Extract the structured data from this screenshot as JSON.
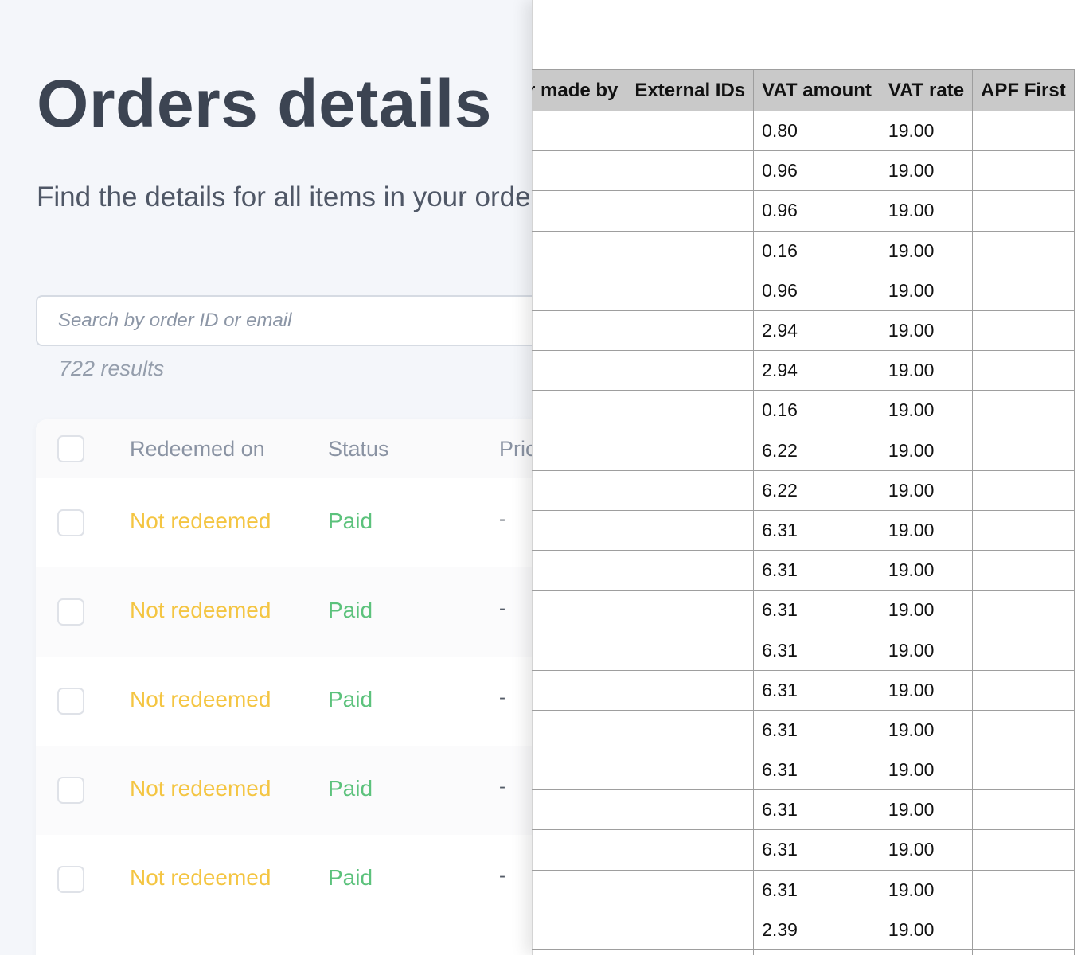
{
  "app": {
    "title": "Orders details",
    "subtitle": "Find the details for all items in your order",
    "search": {
      "placeholder": "Search by order ID or email",
      "value": ""
    },
    "result_count": "722 results",
    "orders_table": {
      "columns": [
        "Redeemed on",
        "Status",
        "Price"
      ],
      "rows": [
        {
          "redeemed": "Not redeemed",
          "status": "Paid",
          "price": "-"
        },
        {
          "redeemed": "Not redeemed",
          "status": "Paid",
          "price": "-"
        },
        {
          "redeemed": "Not redeemed",
          "status": "Paid",
          "price": "-"
        },
        {
          "redeemed": "Not redeemed",
          "status": "Paid",
          "price": "-"
        },
        {
          "redeemed": "Not redeemed",
          "status": "Paid",
          "price": "-"
        }
      ]
    },
    "colors": {
      "not_redeemed": "#f4c542",
      "paid": "#5cc27c",
      "title": "#3c4452"
    }
  },
  "sheet": {
    "columns": [
      "Order made by",
      "External IDs",
      "VAT amount",
      "VAT rate",
      "APF First"
    ],
    "rows": [
      [
        "",
        "",
        "0.80",
        "19.00",
        ""
      ],
      [
        "",
        "",
        "0.96",
        "19.00",
        ""
      ],
      [
        "",
        "",
        "0.96",
        "19.00",
        ""
      ],
      [
        "",
        "",
        "0.16",
        "19.00",
        ""
      ],
      [
        "",
        "",
        "0.96",
        "19.00",
        ""
      ],
      [
        "",
        "",
        "2.94",
        "19.00",
        ""
      ],
      [
        "",
        "",
        "2.94",
        "19.00",
        ""
      ],
      [
        "",
        "",
        "0.16",
        "19.00",
        ""
      ],
      [
        "",
        "",
        "6.22",
        "19.00",
        ""
      ],
      [
        "",
        "",
        "6.22",
        "19.00",
        ""
      ],
      [
        "",
        "",
        "6.31",
        "19.00",
        ""
      ],
      [
        "",
        "",
        "6.31",
        "19.00",
        ""
      ],
      [
        "",
        "",
        "6.31",
        "19.00",
        ""
      ],
      [
        "",
        "",
        "6.31",
        "19.00",
        ""
      ],
      [
        "",
        "",
        "6.31",
        "19.00",
        ""
      ],
      [
        "",
        "",
        "6.31",
        "19.00",
        ""
      ],
      [
        "",
        "",
        "6.31",
        "19.00",
        ""
      ],
      [
        "",
        "",
        "6.31",
        "19.00",
        ""
      ],
      [
        "",
        "",
        "6.31",
        "19.00",
        ""
      ],
      [
        "",
        "",
        "6.31",
        "19.00",
        ""
      ],
      [
        "",
        "",
        "2.39",
        "19.00",
        ""
      ],
      [
        "",
        "",
        "",
        "",
        ""
      ]
    ]
  }
}
